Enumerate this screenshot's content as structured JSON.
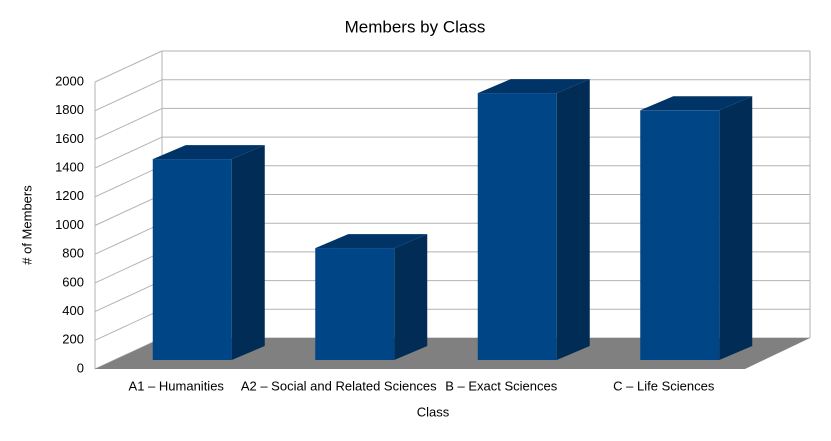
{
  "chart_data": {
    "type": "bar3d",
    "title": "Members by Class",
    "x_label": "Class",
    "y_label": "# of Members",
    "categories": [
      "A1 – Humanities",
      "A2 – Social and Related Sciences",
      "B – Exact Sciences",
      "C – Life Sciences"
    ],
    "values": [
      1400,
      780,
      1860,
      1740
    ],
    "color": "#004586",
    "ylim": [
      0,
      2000
    ],
    "yticks": [
      0,
      200,
      400,
      600,
      800,
      1000,
      1200,
      1400,
      1600,
      1800,
      2000
    ],
    "grid": true
  }
}
